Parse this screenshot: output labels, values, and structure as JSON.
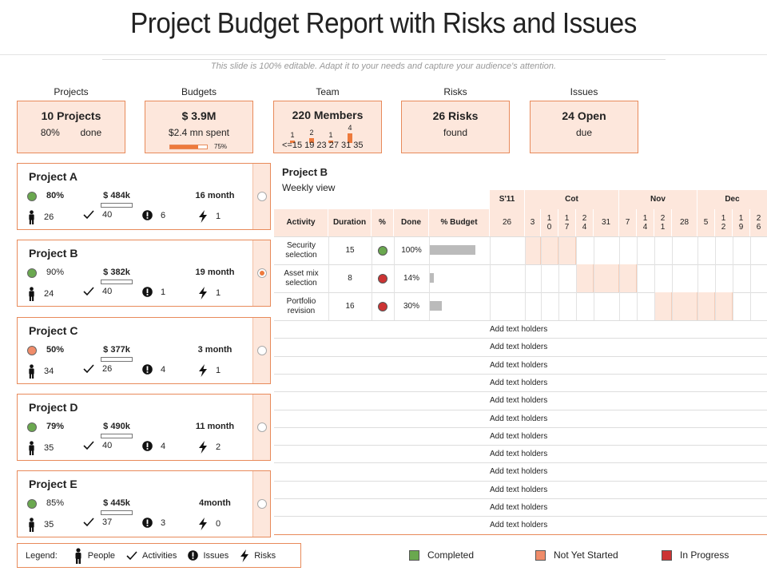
{
  "title": "Project Budget Report with Risks and Issues",
  "subtitle": "This slide is 100% editable. Adapt it to your needs and capture your audience's attention.",
  "kpis": {
    "projects": {
      "label": "Projects",
      "value": "10 Projects",
      "pct": "80%",
      "pct_text": "done"
    },
    "budgets": {
      "label": "Budgets",
      "value": "$ 3.9M",
      "spent": "$2.4 mn spent",
      "bar_pct": 0.75,
      "bar_label": "75%"
    },
    "team": {
      "label": "Team",
      "value": "220 Members",
      "axis": "<=15 19  23  27  31  35",
      "counts": [
        "1",
        "2",
        "1",
        "4"
      ],
      "count_values": [
        1,
        2,
        1,
        4
      ]
    },
    "risks": {
      "label": "Risks",
      "value": "26 Risks",
      "note": "found"
    },
    "issues": {
      "label": "Issues",
      "value": "24 Open",
      "note": "due"
    }
  },
  "projects": [
    {
      "name": "Project A",
      "pct": "80%",
      "pct_bold": true,
      "cost": "$ 484k",
      "duration": "16 month",
      "people": "26",
      "activities": "40",
      "issues": "6",
      "risks": "1",
      "status_color": "#6aa84f",
      "selected": false
    },
    {
      "name": "Project B",
      "pct": "90%",
      "pct_bold": false,
      "cost": "$ 382k",
      "duration": "19 month",
      "people": "24",
      "activities": "40",
      "issues": "1",
      "risks": "1",
      "status_color": "#6aa84f",
      "selected": true
    },
    {
      "name": "Project C",
      "pct": "50%",
      "pct_bold": true,
      "cost": "$ 377k",
      "duration": "3 month",
      "people": "34",
      "activities": "26",
      "issues": "4",
      "risks": "1",
      "status_color": "#f08c6a",
      "selected": false
    },
    {
      "name": "Project D",
      "pct": "79%",
      "pct_bold": true,
      "cost": "$ 490k",
      "duration": "11 month",
      "people": "35",
      "activities": "40",
      "issues": "4",
      "risks": "2",
      "status_color": "#6aa84f",
      "selected": false
    },
    {
      "name": "Project E",
      "pct": "85%",
      "pct_bold": false,
      "cost": "$ 445k",
      "duration": "4month",
      "people": "35",
      "activities": "37",
      "issues": "3",
      "risks": "0",
      "status_color": "#6aa84f",
      "selected": false
    }
  ],
  "legend": {
    "label": "Legend:",
    "people": "People",
    "activities": "Activities",
    "issues": "Issues",
    "risks": "Risks"
  },
  "detail": {
    "title": "Project B",
    "subtitle": "Weekly view",
    "months": [
      "S'11",
      "Cot",
      "Nov",
      "Dec"
    ],
    "columns": [
      "Activity",
      "Duration",
      "%",
      "Done",
      "% Budget"
    ],
    "weeks": [
      "26",
      "3",
      "1\n0",
      "1\n7",
      "2\n4",
      "31",
      "7",
      "1\n4",
      "2\n1",
      "28",
      "5",
      "1\n2",
      "1\n9",
      "2\n6"
    ],
    "rows": [
      {
        "activity": "Security\nselection",
        "duration": "15",
        "status_color": "#6aa84f",
        "done": "100%",
        "budget_pct": 0.75
      },
      {
        "activity": "Asset mix\nselection",
        "duration": "8",
        "status_color": "#cc3333",
        "done": "14%",
        "budget_pct": 0.06
      },
      {
        "activity": "Portfolio\nrevision",
        "duration": "16",
        "status_color": "#cc3333",
        "done": "30%",
        "budget_pct": 0.2
      }
    ],
    "add_text": [
      "Add  text holders",
      "Add  text holders",
      "Add  text holders",
      "Add  text holders",
      "Add  text holders",
      "Add  text holders",
      "Add  text holders",
      "Add  text holders",
      "Add  text holders",
      "Add  text holders",
      "Add  text holders",
      "Add  text holders"
    ]
  },
  "status_legend": [
    {
      "label": "Completed",
      "color": "#6aa84f"
    },
    {
      "label": "Not Yet Started",
      "color": "#f08c6a"
    },
    {
      "label": "In Progress",
      "color": "#cc3333"
    }
  ]
}
